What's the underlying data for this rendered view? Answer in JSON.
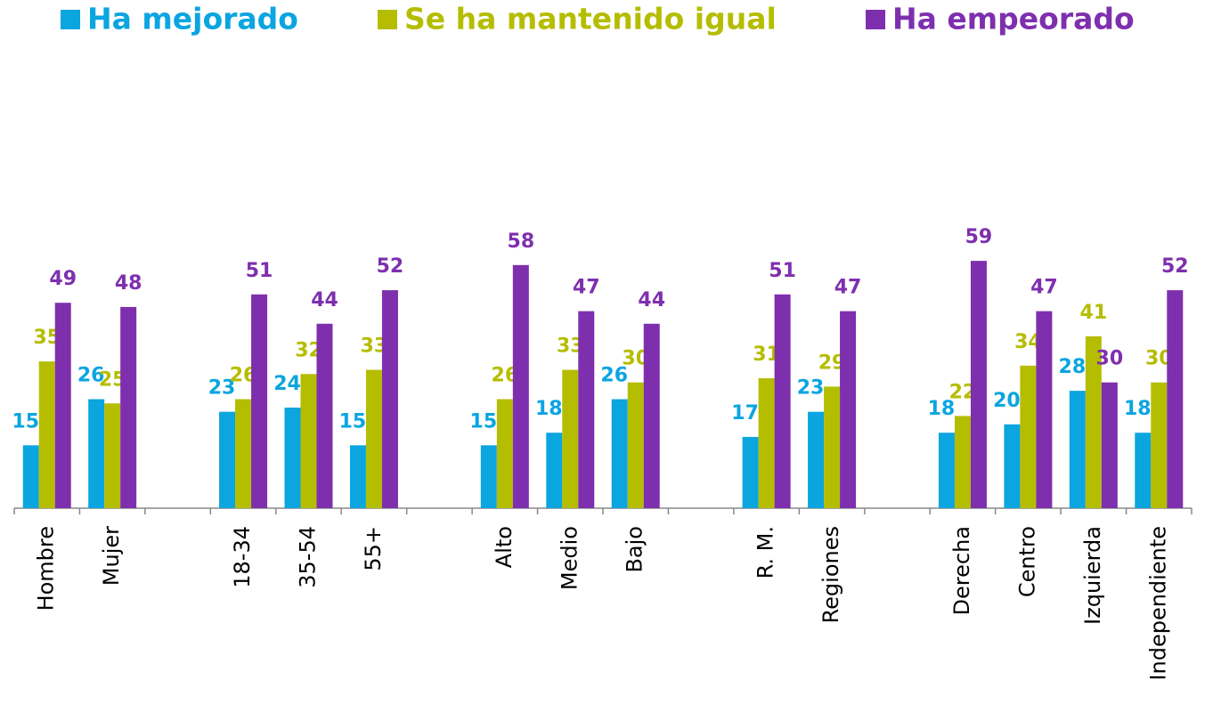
{
  "chart_data": {
    "type": "bar",
    "categories": [
      "Hombre",
      "Mujer",
      null,
      "18-34",
      "35-54",
      "55+",
      null,
      "Alto",
      "Medio",
      "Bajo",
      null,
      "R. M.",
      "Regiones",
      null,
      "Derecha",
      "Centro",
      "Izquierda",
      "Independiente"
    ],
    "series": [
      {
        "name": "Ha mejorado",
        "color": "#0ba5e0",
        "values": [
          15,
          26,
          null,
          23,
          24,
          15,
          null,
          15,
          18,
          26,
          null,
          17,
          23,
          null,
          18,
          20,
          28,
          18
        ]
      },
      {
        "name": "Se ha mantenido igual",
        "color": "#b5bd00",
        "values": [
          35,
          25,
          null,
          26,
          32,
          33,
          null,
          26,
          33,
          30,
          null,
          31,
          29,
          null,
          22,
          34,
          41,
          30
        ]
      },
      {
        "name": "Ha empeorado",
        "color": "#7e2fae",
        "values": [
          49,
          48,
          null,
          51,
          44,
          52,
          null,
          58,
          47,
          44,
          null,
          51,
          47,
          null,
          59,
          47,
          30,
          52
        ]
      }
    ],
    "ylim": [
      0,
      100
    ],
    "legend": "top"
  }
}
